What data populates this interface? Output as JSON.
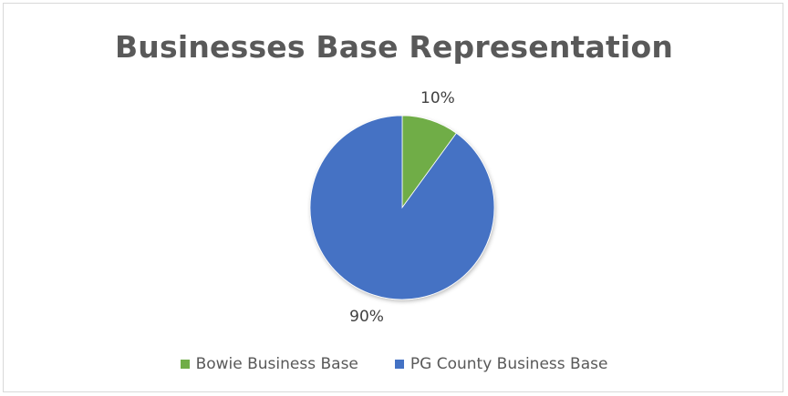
{
  "chart_data": {
    "type": "pie",
    "title": "Businesses Base Representation",
    "categories": [
      "Bowie Business Base",
      "PG County Business Base"
    ],
    "values": [
      10,
      90
    ],
    "labels": [
      "10%",
      "90%"
    ],
    "colors": [
      "#70ad47",
      "#4472c4"
    ],
    "legend_position": "bottom"
  }
}
